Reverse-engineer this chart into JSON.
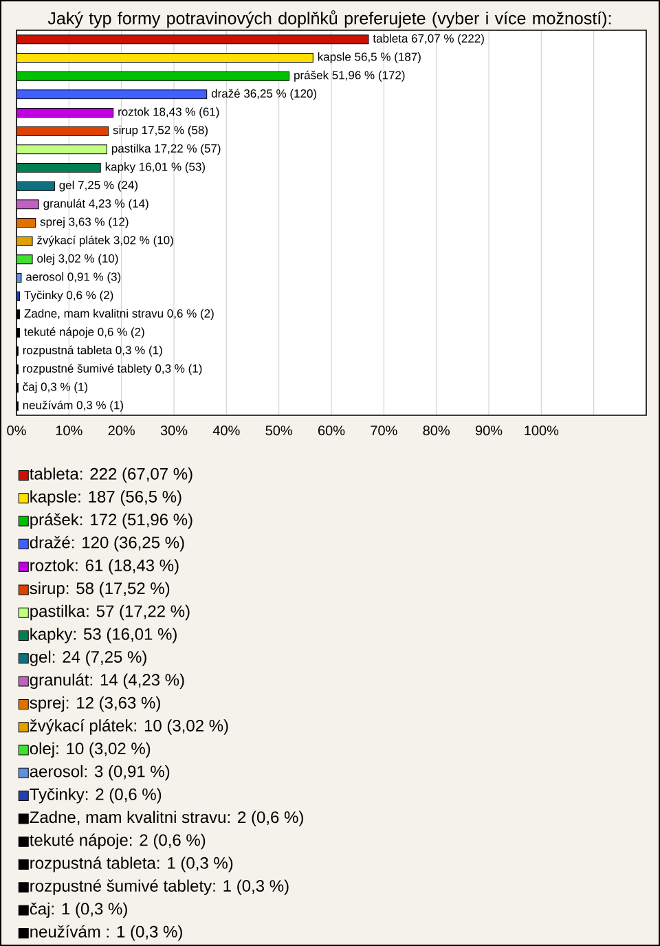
{
  "chart_data": {
    "type": "bar",
    "orientation": "horizontal",
    "title": "Jaký typ formy potravinových doplňků preferujete (vyber i více možností):",
    "categories": [
      null,
      null,
      null,
      null,
      null,
      null,
      null,
      null,
      null,
      null,
      null,
      null,
      null,
      null,
      null,
      null,
      null,
      null,
      null,
      null,
      null
    ],
    "series": [
      {
        "name": "tableta: 222 (67,07 %)",
        "color": "#cc1100",
        "values": [
          67.07,
          null,
          null,
          null,
          null,
          null,
          null,
          null,
          null,
          null,
          null,
          null,
          null,
          null,
          null,
          null,
          null,
          null,
          null,
          null,
          null
        ],
        "value_labels": [
          "tableta 67,07 % (222)",
          null,
          null,
          null,
          null,
          null,
          null,
          null,
          null,
          null,
          null,
          null,
          null,
          null,
          null,
          null,
          null,
          null,
          null,
          null,
          null
        ]
      },
      {
        "name": "kapsle: 187 (56,5 %)",
        "color": "#ffe000",
        "values": [
          null,
          56.5,
          null,
          null,
          null,
          null,
          null,
          null,
          null,
          null,
          null,
          null,
          null,
          null,
          null,
          null,
          null,
          null,
          null,
          null,
          null
        ],
        "value_labels": [
          null,
          "kapsle 56,5 % (187)",
          null,
          null,
          null,
          null,
          null,
          null,
          null,
          null,
          null,
          null,
          null,
          null,
          null,
          null,
          null,
          null,
          null,
          null,
          null
        ]
      },
      {
        "name": "prášek: 172 (51,96 %)",
        "color": "#00c000",
        "values": [
          null,
          null,
          51.96,
          null,
          null,
          null,
          null,
          null,
          null,
          null,
          null,
          null,
          null,
          null,
          null,
          null,
          null,
          null,
          null,
          null,
          null
        ],
        "value_labels": [
          null,
          null,
          "prášek 51,96 % (172)",
          null,
          null,
          null,
          null,
          null,
          null,
          null,
          null,
          null,
          null,
          null,
          null,
          null,
          null,
          null,
          null,
          null,
          null
        ]
      },
      {
        "name": "dražé: 120 (36,25 %)",
        "color": "#4060ff",
        "values": [
          null,
          null,
          null,
          36.25,
          null,
          null,
          null,
          null,
          null,
          null,
          null,
          null,
          null,
          null,
          null,
          null,
          null,
          null,
          null,
          null,
          null
        ],
        "value_labels": [
          null,
          null,
          null,
          "dražé 36,25 % (120)",
          null,
          null,
          null,
          null,
          null,
          null,
          null,
          null,
          null,
          null,
          null,
          null,
          null,
          null,
          null,
          null,
          null
        ]
      },
      {
        "name": "roztok: 61 (18,43 %)",
        "color": "#c000e0",
        "values": [
          null,
          null,
          null,
          null,
          18.43,
          null,
          null,
          null,
          null,
          null,
          null,
          null,
          null,
          null,
          null,
          null,
          null,
          null,
          null,
          null,
          null
        ],
        "value_labels": [
          null,
          null,
          null,
          null,
          "roztok 18,43 % (61)",
          null,
          null,
          null,
          null,
          null,
          null,
          null,
          null,
          null,
          null,
          null,
          null,
          null,
          null,
          null,
          null
        ]
      },
      {
        "name": "sirup: 58 (17,52 %)",
        "color": "#e04000",
        "values": [
          null,
          null,
          null,
          null,
          null,
          17.52,
          null,
          null,
          null,
          null,
          null,
          null,
          null,
          null,
          null,
          null,
          null,
          null,
          null,
          null,
          null
        ],
        "value_labels": [
          null,
          null,
          null,
          null,
          null,
          "sirup 17,52 % (58)",
          null,
          null,
          null,
          null,
          null,
          null,
          null,
          null,
          null,
          null,
          null,
          null,
          null,
          null,
          null
        ]
      },
      {
        "name": "pastilka: 57 (17,22 %)",
        "color": "#c0ff80",
        "values": [
          null,
          null,
          null,
          null,
          null,
          null,
          17.22,
          null,
          null,
          null,
          null,
          null,
          null,
          null,
          null,
          null,
          null,
          null,
          null,
          null,
          null
        ],
        "value_labels": [
          null,
          null,
          null,
          null,
          null,
          null,
          "pastilka 17,22 % (57)",
          null,
          null,
          null,
          null,
          null,
          null,
          null,
          null,
          null,
          null,
          null,
          null,
          null,
          null
        ]
      },
      {
        "name": "kapky: 53 (16,01 %)",
        "color": "#008050",
        "values": [
          null,
          null,
          null,
          null,
          null,
          null,
          null,
          16.01,
          null,
          null,
          null,
          null,
          null,
          null,
          null,
          null,
          null,
          null,
          null,
          null,
          null
        ],
        "value_labels": [
          null,
          null,
          null,
          null,
          null,
          null,
          null,
          "kapky 16,01 % (53)",
          null,
          null,
          null,
          null,
          null,
          null,
          null,
          null,
          null,
          null,
          null,
          null,
          null
        ]
      },
      {
        "name": "gel: 24 (7,25 %)",
        "color": "#107080",
        "values": [
          null,
          null,
          null,
          null,
          null,
          null,
          null,
          null,
          7.25,
          null,
          null,
          null,
          null,
          null,
          null,
          null,
          null,
          null,
          null,
          null,
          null
        ],
        "value_labels": [
          null,
          null,
          null,
          null,
          null,
          null,
          null,
          null,
          "gel 7,25 % (24)",
          null,
          null,
          null,
          null,
          null,
          null,
          null,
          null,
          null,
          null,
          null,
          null
        ]
      },
      {
        "name": "granulát: 14 (4,23 %)",
        "color": "#c060c0",
        "values": [
          null,
          null,
          null,
          null,
          null,
          null,
          null,
          null,
          null,
          4.23,
          null,
          null,
          null,
          null,
          null,
          null,
          null,
          null,
          null,
          null,
          null
        ],
        "value_labels": [
          null,
          null,
          null,
          null,
          null,
          null,
          null,
          null,
          null,
          "granulát 4,23 % (14)",
          null,
          null,
          null,
          null,
          null,
          null,
          null,
          null,
          null,
          null,
          null
        ]
      },
      {
        "name": "sprej: 12 (3,63 %)",
        "color": "#e07000",
        "values": [
          null,
          null,
          null,
          null,
          null,
          null,
          null,
          null,
          null,
          null,
          3.63,
          null,
          null,
          null,
          null,
          null,
          null,
          null,
          null,
          null,
          null
        ],
        "value_labels": [
          null,
          null,
          null,
          null,
          null,
          null,
          null,
          null,
          null,
          null,
          "sprej 3,63 % (12)",
          null,
          null,
          null,
          null,
          null,
          null,
          null,
          null,
          null,
          null
        ]
      },
      {
        "name": "žvýkací plátek: 10 (3,02 %)",
        "color": "#e0a000",
        "values": [
          null,
          null,
          null,
          null,
          null,
          null,
          null,
          null,
          null,
          null,
          null,
          3.02,
          null,
          null,
          null,
          null,
          null,
          null,
          null,
          null,
          null
        ],
        "value_labels": [
          null,
          null,
          null,
          null,
          null,
          null,
          null,
          null,
          null,
          null,
          null,
          "žvýkací plátek 3,02 % (10)",
          null,
          null,
          null,
          null,
          null,
          null,
          null,
          null,
          null
        ]
      },
      {
        "name": "olej: 10 (3,02 %)",
        "color": "#40e030",
        "values": [
          null,
          null,
          null,
          null,
          null,
          null,
          null,
          null,
          null,
          null,
          null,
          null,
          3.02,
          null,
          null,
          null,
          null,
          null,
          null,
          null,
          null
        ],
        "value_labels": [
          null,
          null,
          null,
          null,
          null,
          null,
          null,
          null,
          null,
          null,
          null,
          null,
          "olej 3,02 % (10)",
          null,
          null,
          null,
          null,
          null,
          null,
          null,
          null
        ]
      },
      {
        "name": "aerosol: 3 (0,91 %)",
        "color": "#6090e0",
        "values": [
          null,
          null,
          null,
          null,
          null,
          null,
          null,
          null,
          null,
          null,
          null,
          null,
          null,
          0.91,
          null,
          null,
          null,
          null,
          null,
          null,
          null
        ],
        "value_labels": [
          null,
          null,
          null,
          null,
          null,
          null,
          null,
          null,
          null,
          null,
          null,
          null,
          null,
          "aerosol 0,91 % (3)",
          null,
          null,
          null,
          null,
          null,
          null,
          null
        ]
      },
      {
        "name": "Tyčinky: 2 (0,6 %)",
        "color": "#2040b0",
        "values": [
          null,
          null,
          null,
          null,
          null,
          null,
          null,
          null,
          null,
          null,
          null,
          null,
          null,
          null,
          0.6,
          null,
          null,
          null,
          null,
          null,
          null
        ],
        "value_labels": [
          null,
          null,
          null,
          null,
          null,
          null,
          null,
          null,
          null,
          null,
          null,
          null,
          null,
          null,
          "Tyčinky 0,6 % (2)",
          null,
          null,
          null,
          null,
          null,
          null
        ]
      },
      {
        "name": "Zadne, mam kvalitni stravu: 2 (0,6 %)",
        "color": "#000000",
        "values": [
          null,
          null,
          null,
          null,
          null,
          null,
          null,
          null,
          null,
          null,
          null,
          null,
          null,
          null,
          null,
          0.6,
          null,
          null,
          null,
          null,
          null
        ],
        "value_labels": [
          null,
          null,
          null,
          null,
          null,
          null,
          null,
          null,
          null,
          null,
          null,
          null,
          null,
          null,
          null,
          "Zadne, mam kvalitni stravu 0,6 % (2)",
          null,
          null,
          null,
          null,
          null
        ]
      },
      {
        "name": "tekuté nápoje: 2 (0,6 %)",
        "color": "#000000",
        "values": [
          null,
          null,
          null,
          null,
          null,
          null,
          null,
          null,
          null,
          null,
          null,
          null,
          null,
          null,
          null,
          null,
          0.6,
          null,
          null,
          null,
          null
        ],
        "value_labels": [
          null,
          null,
          null,
          null,
          null,
          null,
          null,
          null,
          null,
          null,
          null,
          null,
          null,
          null,
          null,
          null,
          "tekuté nápoje 0,6 % (2)",
          null,
          null,
          null,
          null
        ]
      },
      {
        "name": "rozpustná tableta: 1 (0,3 %)",
        "color": "#000000",
        "values": [
          null,
          null,
          null,
          null,
          null,
          null,
          null,
          null,
          null,
          null,
          null,
          null,
          null,
          null,
          null,
          null,
          null,
          0.3,
          null,
          null,
          null
        ],
        "value_labels": [
          null,
          null,
          null,
          null,
          null,
          null,
          null,
          null,
          null,
          null,
          null,
          null,
          null,
          null,
          null,
          null,
          null,
          "rozpustná tableta 0,3 % (1)",
          null,
          null,
          null
        ]
      },
      {
        "name": "rozpustné šumivé tablety: 1 (0,3 %)",
        "color": "#000000",
        "values": [
          null,
          null,
          null,
          null,
          null,
          null,
          null,
          null,
          null,
          null,
          null,
          null,
          null,
          null,
          null,
          null,
          null,
          null,
          0.3,
          null,
          null
        ],
        "value_labels": [
          null,
          null,
          null,
          null,
          null,
          null,
          null,
          null,
          null,
          null,
          null,
          null,
          null,
          null,
          null,
          null,
          null,
          null,
          "rozpustné šumivé tablety 0,3 % (1)",
          null,
          null
        ]
      },
      {
        "name": "čaj: 1 (0,3 %)",
        "color": "#000000",
        "values": [
          null,
          null,
          null,
          null,
          null,
          null,
          null,
          null,
          null,
          null,
          null,
          null,
          null,
          null,
          null,
          null,
          null,
          null,
          null,
          0.3,
          null
        ],
        "value_labels": [
          null,
          null,
          null,
          null,
          null,
          null,
          null,
          null,
          null,
          null,
          null,
          null,
          null,
          null,
          null,
          null,
          null,
          null,
          null,
          "čaj 0,3 % (1)",
          null
        ]
      },
      {
        "name": "neužívám : 1 (0,3 %)",
        "color": "#000000",
        "values": [
          null,
          null,
          null,
          null,
          null,
          null,
          null,
          null,
          null,
          null,
          null,
          null,
          null,
          null,
          null,
          null,
          null,
          null,
          null,
          null,
          0.3
        ],
        "value_labels": [
          null,
          null,
          null,
          null,
          null,
          null,
          null,
          null,
          null,
          null,
          null,
          null,
          null,
          null,
          null,
          null,
          null,
          null,
          null,
          null,
          "neužívám  0,3 % (1)"
        ]
      }
    ],
    "xlim": [
      0,
      120
    ],
    "xticks": [
      {
        "value": 0,
        "label": "0%"
      },
      {
        "value": 10,
        "label": "10%"
      },
      {
        "value": 20,
        "label": "20%"
      },
      {
        "value": 30,
        "label": "30%"
      },
      {
        "value": 40,
        "label": "40%"
      },
      {
        "value": 50,
        "label": "50%"
      },
      {
        "value": 60,
        "label": "60%"
      },
      {
        "value": 70,
        "label": "70%"
      },
      {
        "value": 80,
        "label": "80%"
      },
      {
        "value": 90,
        "label": "90%"
      },
      {
        "value": 100,
        "label": "100%"
      },
      {
        "value": 110,
        "label": null
      }
    ],
    "grid": "x",
    "legend": "bottom"
  }
}
